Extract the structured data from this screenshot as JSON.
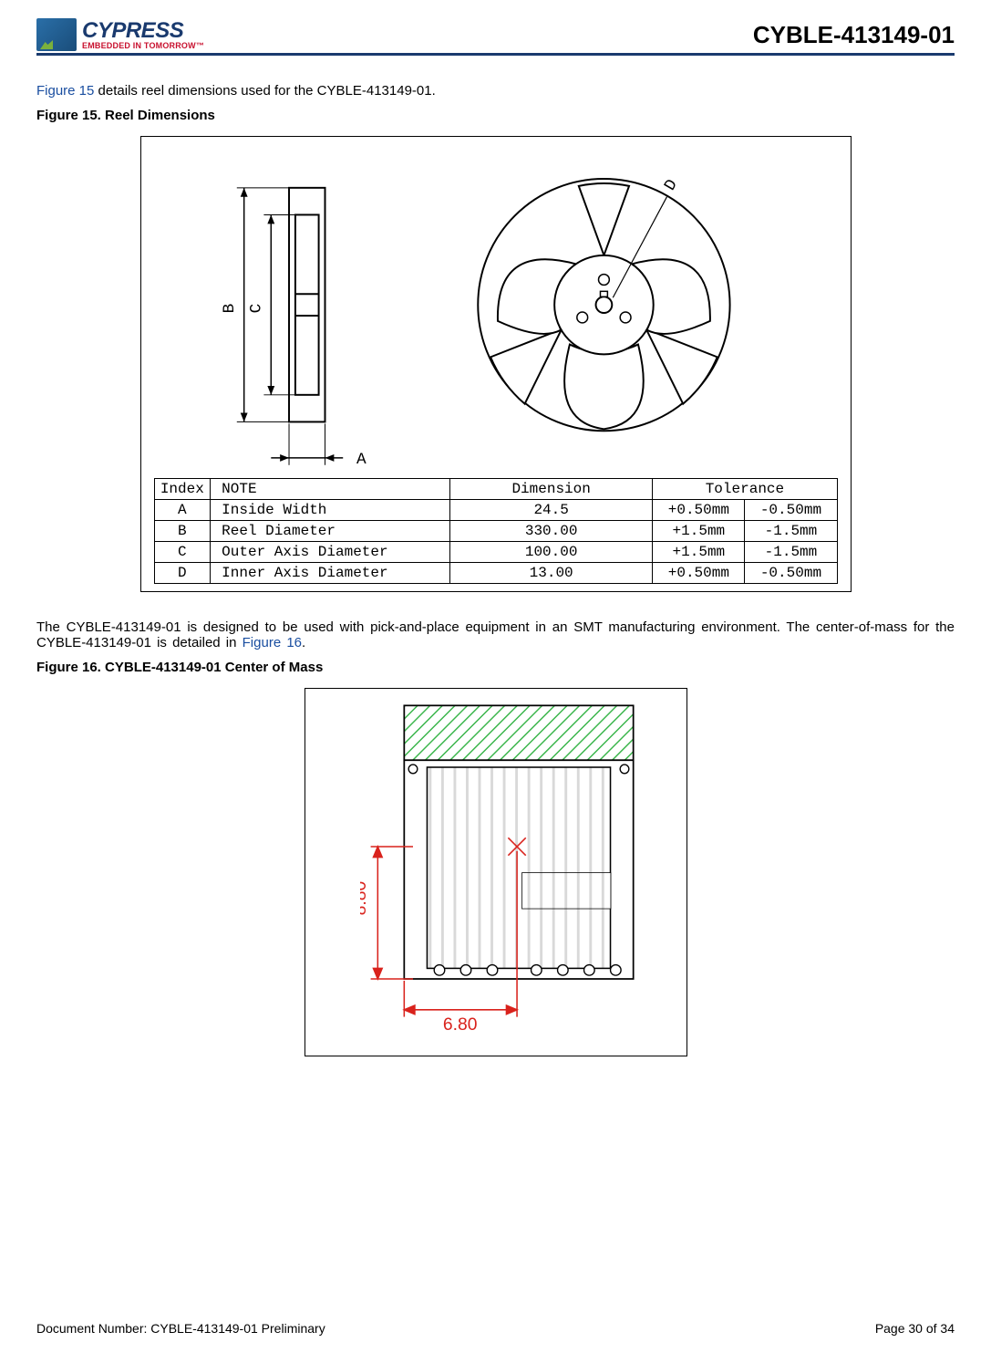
{
  "header": {
    "logo_name": "CYPRESS",
    "logo_tagline": "EMBEDDED IN TOMORROW™",
    "part_number": "CYBLE-413149-01"
  },
  "intro": {
    "figref": "Figure 15",
    "rest": " details reel dimensions used for the CYBLE-413149-01."
  },
  "fig15": {
    "title": "Figure 15.  Reel Dimensions",
    "diagram": {
      "labels": {
        "A": "A",
        "B": "B",
        "C": "C",
        "D": "D"
      },
      "side_view": {
        "outer_w": 40,
        "outer_h": 260,
        "inner_w": 26,
        "inner_h": 200
      },
      "front_view": {
        "outer_r": 140,
        "hub_r": 55,
        "hole_r": 9
      }
    },
    "table": {
      "headers": {
        "index": "Index",
        "note": "NOTE",
        "dimension": "Dimension",
        "tolerance": "Tolerance"
      },
      "rows": [
        {
          "idx": "A",
          "note": "Inside Width",
          "dim": "24.5",
          "tol_plus": "+0.50mm",
          "tol_minus": "-0.50mm"
        },
        {
          "idx": "B",
          "note": "Reel Diameter",
          "dim": "330.00",
          "tol_plus": "+1.5mm",
          "tol_minus": "-1.5mm"
        },
        {
          "idx": "C",
          "note": "Outer Axis Diameter",
          "dim": "100.00",
          "tol_plus": "+1.5mm",
          "tol_minus": "-1.5mm"
        },
        {
          "idx": "D",
          "note": "Inner Axis Diameter",
          "dim": "13.00",
          "tol_plus": "+0.50mm",
          "tol_minus": "-0.50mm"
        }
      ]
    }
  },
  "para2": {
    "pre": "The CYBLE-413149-01 is designed to be used with pick-and-place equipment in an SMT manufacturing environment. The center-of-mass for the CYBLE-413149-01 is detailed in ",
    "figref": "Figure 16",
    "post": "."
  },
  "fig16": {
    "title": "Figure 16.  CYBLE-413149-01 Center of Mass",
    "dims": {
      "x_label": "6.80",
      "y_label": "8.80"
    },
    "colors": {
      "hatch": "#39b54a",
      "dim": "#d9221c",
      "outline": "#000000",
      "shade": "#d9d9d9"
    }
  },
  "footer": {
    "doc_number": "Document Number:  CYBLE-413149-01 Preliminary",
    "page": "Page 30 of 34"
  }
}
